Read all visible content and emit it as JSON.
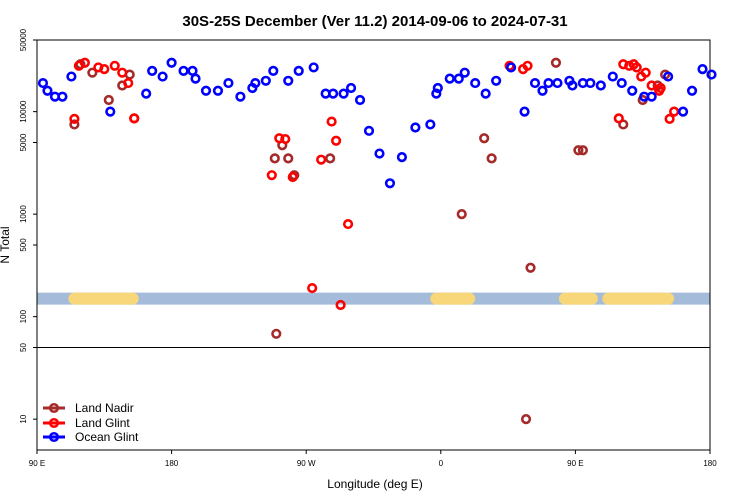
{
  "chart_data": {
    "type": "scatter",
    "title": "30S-25S December (Ver 11.2)   2014-09-06 to 2024-07-31",
    "xlabel": "Longitude (deg E)",
    "ylabel": "N Total",
    "xlim": [
      90,
      540
    ],
    "ylim": [
      5,
      50000
    ],
    "yscale": "log",
    "x_ticks": [
      {
        "value": 90,
        "label": "90 E"
      },
      {
        "value": 180,
        "label": "180"
      },
      {
        "value": 270,
        "label": "90 W"
      },
      {
        "value": 360,
        "label": "0"
      },
      {
        "value": 450,
        "label": "90 E"
      },
      {
        "value": 540,
        "label": "180"
      }
    ],
    "y_ticks": [
      {
        "value": 10,
        "label": "10"
      },
      {
        "value": 50,
        "label": "50"
      },
      {
        "value": 100,
        "label": "100"
      },
      {
        "value": 500,
        "label": "500"
      },
      {
        "value": 1000,
        "label": "1000"
      },
      {
        "value": 5000,
        "label": "5000"
      },
      {
        "value": 10000,
        "label": "10000"
      },
      {
        "value": 50000,
        "label": "50000"
      }
    ],
    "reference_line_y": 50,
    "band": {
      "y": 150,
      "color": "#a4bcd9",
      "land_color": "#f7d77a",
      "land_segments": [
        [
          115,
          154
        ],
        [
          357,
          379
        ],
        [
          443,
          461
        ],
        [
          472,
          512
        ]
      ]
    },
    "series": [
      {
        "name": "Land Nadir",
        "color": "#a52a2a",
        "x": [
          115,
          119,
          127,
          138,
          147,
          152,
          155,
          249,
          250,
          254,
          258,
          262,
          286,
          374,
          389,
          394,
          417,
          420,
          437,
          452,
          455,
          482,
          495,
          505,
          510
        ],
        "y": [
          7500,
          29000,
          24000,
          13000,
          18000,
          23000,
          8600,
          3500,
          68,
          4700,
          3500,
          2400,
          3500,
          1000,
          5500,
          3500,
          10,
          300,
          30000,
          4200,
          4200,
          7500,
          13000,
          18000,
          23000
        ]
      },
      {
        "name": "Land Glint",
        "color": "#ff0000",
        "x": [
          115,
          118,
          122,
          131,
          135,
          142,
          147,
          151,
          155,
          247,
          252,
          256,
          261,
          274,
          280,
          287,
          290,
          293,
          298,
          406,
          415,
          418,
          479,
          482,
          486,
          489,
          491,
          494,
          497,
          501,
          506,
          507,
          513,
          516
        ],
        "y": [
          8500,
          28000,
          30000,
          27000,
          26000,
          28000,
          24000,
          19000,
          8600,
          2400,
          5500,
          5400,
          2300,
          190,
          3400,
          8000,
          5200,
          130,
          800,
          28000,
          26000,
          28000,
          8600,
          29000,
          28000,
          29000,
          27000,
          22000,
          24000,
          18000,
          16000,
          17000,
          8500,
          10000
        ]
      },
      {
        "name": "Ocean Glint",
        "color": "#0000ff",
        "x": [
          94,
          97,
          102,
          107,
          113,
          139,
          163,
          167,
          174,
          180,
          188,
          194,
          196,
          203,
          211,
          218,
          226,
          234,
          236,
          243,
          248,
          258,
          265,
          275,
          283,
          288,
          295,
          300,
          306,
          312,
          319,
          326,
          334,
          343,
          353,
          357,
          358,
          366,
          372,
          376,
          383,
          390,
          397,
          407,
          416,
          423,
          428,
          432,
          438,
          446,
          448,
          455,
          460,
          467,
          475,
          481,
          488,
          496,
          501,
          512,
          522,
          528,
          535,
          541
        ],
        "y": [
          19000,
          16000,
          14000,
          14000,
          22000,
          10000,
          15000,
          25000,
          22000,
          30000,
          25000,
          25000,
          21000,
          16000,
          16000,
          19000,
          14000,
          17000,
          19000,
          20000,
          25000,
          20000,
          25000,
          27000,
          15000,
          15000,
          15000,
          17000,
          13000,
          6500,
          3900,
          2000,
          3600,
          7000,
          7500,
          15000,
          17000,
          21000,
          21000,
          24000,
          19000,
          15000,
          20000,
          27000,
          10000,
          19000,
          16000,
          19000,
          19000,
          20000,
          18000,
          19000,
          19000,
          18000,
          22000,
          19000,
          16000,
          14000,
          14000,
          22000,
          10000,
          16000,
          26000,
          23000
        ]
      }
    ]
  }
}
